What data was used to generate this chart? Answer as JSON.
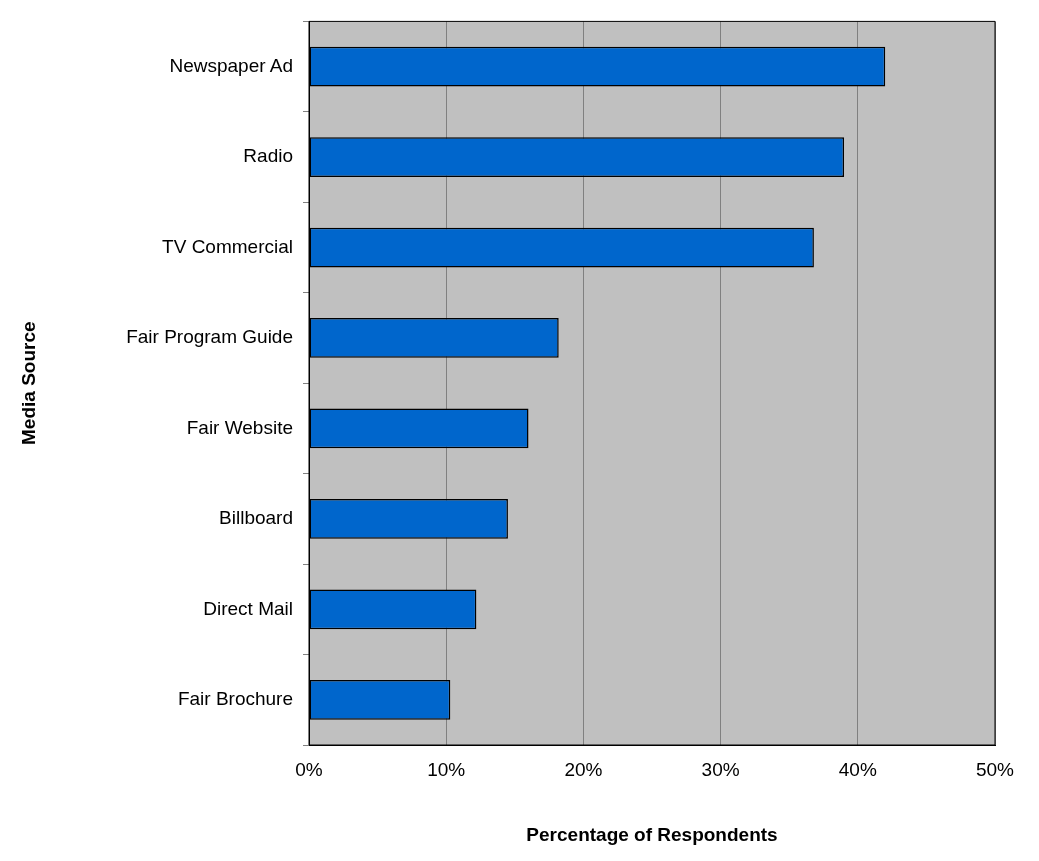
{
  "chart_data": {
    "type": "bar",
    "orientation": "horizontal",
    "categories": [
      "Newspaper Ad",
      "Radio",
      "TV Commercial",
      "Fair Program Guide",
      "Fair Website",
      "Billboard",
      "Direct Mail",
      "Fair Brochure"
    ],
    "values": [
      42.0,
      39.0,
      36.8,
      18.2,
      16.0,
      14.5,
      12.2,
      10.3
    ],
    "color": "#0066cc",
    "xlim": [
      0,
      50
    ],
    "xticks": [
      {
        "value": 0,
        "label": "0%"
      },
      {
        "value": 10,
        "label": "10%"
      },
      {
        "value": 20,
        "label": "20%"
      },
      {
        "value": 30,
        "label": "30%"
      },
      {
        "value": 40,
        "label": "40%"
      },
      {
        "value": 50,
        "label": "50%"
      }
    ],
    "xlabel": "Percentage of Respondents",
    "ylabel": "Media Source",
    "grid": "x"
  }
}
